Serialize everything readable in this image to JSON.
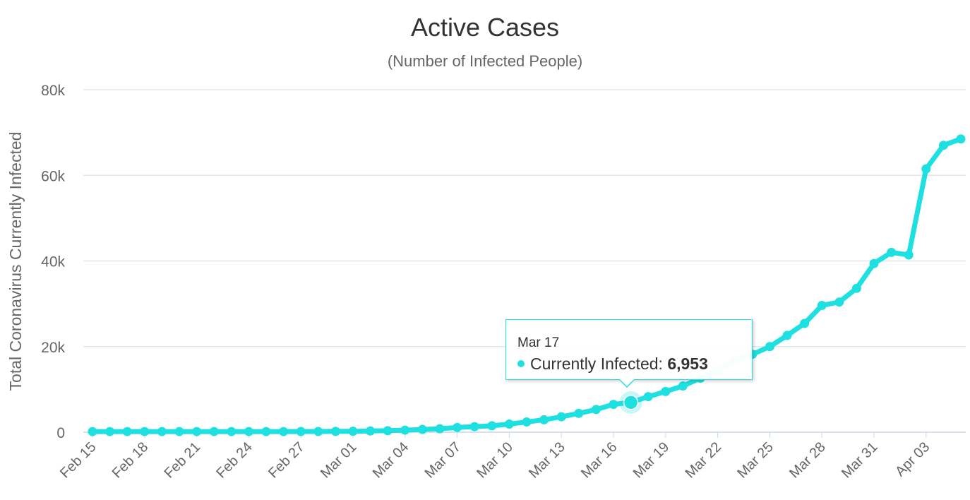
{
  "chart_data": {
    "type": "line",
    "title": "Active Cases",
    "subtitle": "(Number of Infected People)",
    "xlabel": "",
    "ylabel": "Total Coronavirus Currently Infected",
    "ylim": [
      0,
      80000
    ],
    "y_ticks": [
      0,
      20000,
      40000,
      60000,
      80000
    ],
    "y_tick_labels": [
      "0",
      "20k",
      "40k",
      "60k",
      "80k"
    ],
    "x_tick_labels": [
      "Feb 15",
      "Feb 18",
      "Feb 21",
      "Feb 24",
      "Feb 27",
      "Mar 01",
      "Mar 04",
      "Mar 07",
      "Mar 10",
      "Mar 13",
      "Mar 16",
      "Mar 19",
      "Mar 22",
      "Mar 25",
      "Mar 28",
      "Mar 31",
      "Apr 03"
    ],
    "grid": true,
    "legend": "none",
    "color": "#1ee0e0",
    "x": [
      "Feb 15",
      "Feb 16",
      "Feb 17",
      "Feb 18",
      "Feb 19",
      "Feb 20",
      "Feb 21",
      "Feb 22",
      "Feb 23",
      "Feb 24",
      "Feb 25",
      "Feb 26",
      "Feb 27",
      "Feb 28",
      "Feb 29",
      "Mar 01",
      "Mar 02",
      "Mar 03",
      "Mar 04",
      "Mar 05",
      "Mar 06",
      "Mar 07",
      "Mar 08",
      "Mar 09",
      "Mar 10",
      "Mar 11",
      "Mar 12",
      "Mar 13",
      "Mar 14",
      "Mar 15",
      "Mar 16",
      "Mar 17",
      "Mar 18",
      "Mar 19",
      "Mar 20",
      "Mar 21",
      "Mar 22",
      "Mar 23",
      "Mar 24",
      "Mar 25",
      "Mar 26",
      "Mar 27",
      "Mar 28",
      "Mar 29",
      "Mar 30",
      "Mar 31",
      "Apr 01",
      "Apr 02",
      "Apr 03",
      "Apr 04",
      "Apr 05"
    ],
    "series": [
      {
        "values": [
          150,
          150,
          150,
          150,
          150,
          150,
          150,
          150,
          150,
          150,
          150,
          150,
          160,
          170,
          190,
          220,
          280,
          360,
          480,
          650,
          800,
          1100,
          1300,
          1500,
          1900,
          2400,
          2900,
          3600,
          4400,
          5300,
          6500,
          6953,
          8300,
          9500,
          10800,
          12600,
          14500,
          16800,
          18200,
          20000,
          22600,
          25400,
          29600,
          30400,
          33600,
          39400,
          42000,
          41400,
          61500,
          67000,
          68500
        ]
      }
    ],
    "tooltip": {
      "date": "Mar 17",
      "label": "Currently Infected:",
      "value": "6,953"
    }
  }
}
